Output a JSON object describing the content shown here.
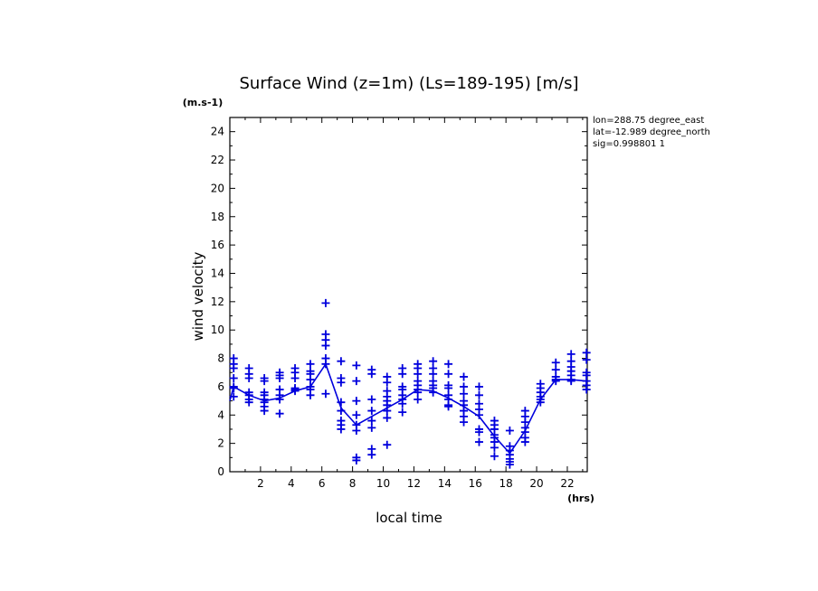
{
  "chart_data": {
    "type": "scatter",
    "title": "Surface Wind (z=1m) (Ls=189-195) [m/s]",
    "ylabel": "wind velocity",
    "yunit": "(m.s-1)",
    "xlabel": "local time",
    "xunit": "(hrs)",
    "xlim": [
      0,
      23.3
    ],
    "ylim": [
      0,
      25
    ],
    "xticks": [
      2,
      4,
      6,
      8,
      10,
      12,
      14,
      16,
      18,
      20,
      22
    ],
    "yticks": [
      0,
      2,
      4,
      6,
      8,
      10,
      12,
      14,
      16,
      18,
      20,
      22,
      24
    ],
    "color": "#0000dd",
    "info_lines": [
      "lon=288.75 degree_east",
      "lat=-12.989 degree_north",
      "sig=0.998801 1"
    ],
    "mean_line": {
      "x": [
        0.25,
        1.25,
        2.25,
        3.25,
        4.25,
        5.25,
        6.25,
        7.25,
        8.25,
        9.25,
        10.25,
        11.25,
        12.25,
        13.25,
        14.25,
        15.25,
        16.25,
        17.25,
        18.25,
        19.25,
        20.25,
        21.25,
        22.25,
        23.25
      ],
      "y": [
        6.0,
        5.4,
        5.0,
        5.2,
        5.7,
        6.0,
        7.6,
        4.5,
        3.3,
        3.9,
        4.5,
        5.1,
        5.8,
        5.7,
        5.2,
        4.6,
        3.9,
        2.5,
        1.3,
        2.9,
        5.1,
        6.5,
        6.5,
        6.4
      ],
      "mid": 5.0
    },
    "scatter_points": [
      {
        "x": 0.25,
        "y": [
          8.0,
          7.6,
          7.3,
          6.6,
          6.0,
          5.9,
          5.3
        ]
      },
      {
        "x": 1.25,
        "y": [
          7.3,
          6.9,
          6.6,
          5.6,
          5.4,
          5.1,
          4.9
        ]
      },
      {
        "x": 2.25,
        "y": [
          6.6,
          6.4,
          5.6,
          5.4,
          5.1,
          4.9,
          4.6,
          4.3
        ]
      },
      {
        "x": 3.25,
        "y": [
          7.0,
          6.8,
          6.6,
          5.8,
          5.4,
          5.1,
          4.1
        ]
      },
      {
        "x": 4.25,
        "y": [
          7.3,
          7.0,
          6.6,
          5.9,
          5.8,
          5.7
        ]
      },
      {
        "x": 5.25,
        "y": [
          7.6,
          7.1,
          6.9,
          6.5,
          6.0,
          5.8,
          5.4
        ]
      },
      {
        "x": 6.25,
        "y": [
          11.9,
          9.7,
          9.3,
          8.9,
          8.0,
          7.6,
          5.5
        ]
      },
      {
        "x": 7.25,
        "y": [
          7.8,
          6.6,
          6.3,
          4.9,
          4.3,
          3.6,
          3.3,
          3.0
        ]
      },
      {
        "x": 8.25,
        "y": [
          7.5,
          6.4,
          5.0,
          4.0,
          3.3,
          2.9,
          1.0,
          0.8
        ]
      },
      {
        "x": 9.25,
        "y": [
          7.2,
          6.9,
          5.1,
          4.3,
          3.6,
          3.1,
          1.6,
          1.2
        ]
      },
      {
        "x": 10.25,
        "y": [
          6.7,
          6.3,
          5.7,
          5.3,
          5.0,
          4.7,
          4.3,
          3.8,
          1.9
        ]
      },
      {
        "x": 11.25,
        "y": [
          7.3,
          6.9,
          6.0,
          5.8,
          5.4,
          5.1,
          4.8,
          4.2
        ]
      },
      {
        "x": 12.25,
        "y": [
          7.6,
          7.3,
          6.9,
          6.4,
          6.1,
          5.8,
          5.6,
          5.1
        ]
      },
      {
        "x": 13.25,
        "y": [
          7.8,
          7.3,
          6.9,
          6.4,
          6.1,
          5.9,
          5.6
        ]
      },
      {
        "x": 14.25,
        "y": [
          7.6,
          6.9,
          6.1,
          5.9,
          5.4,
          5.1,
          4.7,
          4.6
        ]
      },
      {
        "x": 15.25,
        "y": [
          6.7,
          6.0,
          5.5,
          5.0,
          4.7,
          4.3,
          3.9,
          3.5
        ]
      },
      {
        "x": 16.25,
        "y": [
          6.0,
          5.4,
          4.8,
          4.4,
          4.0,
          3.0,
          2.8,
          2.1
        ]
      },
      {
        "x": 17.25,
        "y": [
          3.6,
          3.3,
          3.0,
          2.6,
          2.4,
          2.1,
          1.7,
          1.1
        ]
      },
      {
        "x": 18.25,
        "y": [
          2.9,
          1.8,
          1.5,
          1.2,
          0.9,
          0.7,
          0.5
        ]
      },
      {
        "x": 19.25,
        "y": [
          4.3,
          3.9,
          3.5,
          3.1,
          2.8,
          2.4,
          2.1
        ]
      },
      {
        "x": 20.25,
        "y": [
          6.2,
          5.9,
          5.6,
          5.3,
          5.1,
          4.9
        ]
      },
      {
        "x": 21.25,
        "y": [
          7.7,
          7.2,
          6.7,
          6.5,
          6.4
        ]
      },
      {
        "x": 22.25,
        "y": [
          8.3,
          7.8,
          7.4,
          7.1,
          6.8,
          6.5,
          6.4
        ]
      },
      {
        "x": 23.25,
        "y": [
          8.4,
          7.9,
          7.0,
          6.8,
          6.4,
          6.1,
          5.8
        ]
      }
    ]
  }
}
